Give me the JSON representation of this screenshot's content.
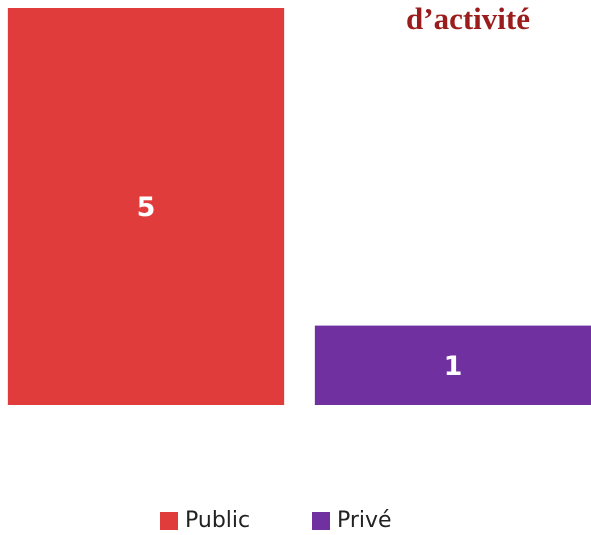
{
  "chart_data": {
    "type": "bar",
    "title": "d’activité",
    "categories": [
      "Public",
      "Privé"
    ],
    "values": [
      5,
      1
    ],
    "colors": [
      "#e03c3c",
      "#7030a0"
    ],
    "ylim": [
      0,
      5
    ],
    "legend": "bottom"
  }
}
